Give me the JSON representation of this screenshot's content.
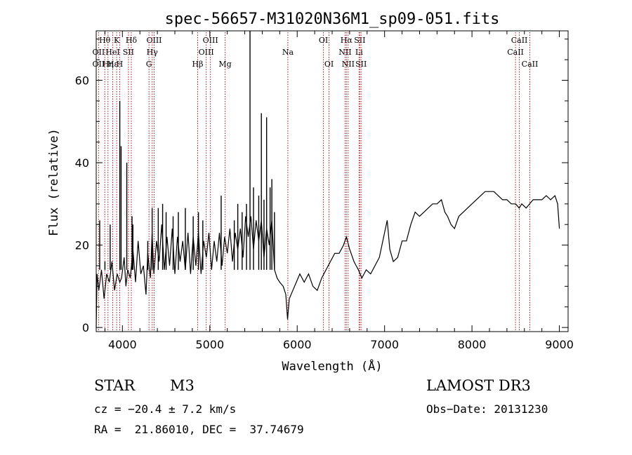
{
  "chart_data": {
    "type": "line",
    "title": "spec-56657-M31020N36M1_sp09-051.fits",
    "xlabel": "Wavelength (Å)",
    "ylabel": "Flux (relative)",
    "xlim": [
      3700,
      9100
    ],
    "ylim": [
      -1,
      72
    ],
    "x_ticks": [
      4000,
      5000,
      6000,
      7000,
      8000,
      9000
    ],
    "y_ticks": [
      0,
      20,
      40,
      60
    ],
    "series": [
      {
        "name": "spectrum",
        "points": [
          [
            3700,
            0
          ],
          [
            3710,
            13
          ],
          [
            3730,
            9
          ],
          [
            3760,
            14
          ],
          [
            3790,
            7
          ],
          [
            3820,
            13
          ],
          [
            3850,
            11
          ],
          [
            3880,
            16
          ],
          [
            3910,
            9
          ],
          [
            3940,
            13
          ],
          [
            3970,
            11
          ],
          [
            3990,
            12
          ],
          [
            4020,
            17
          ],
          [
            4040,
            10
          ],
          [
            4060,
            14
          ],
          [
            4090,
            12
          ],
          [
            4120,
            19
          ],
          [
            4150,
            11
          ],
          [
            4180,
            21
          ],
          [
            4210,
            13
          ],
          [
            4240,
            15
          ],
          [
            4270,
            8
          ],
          [
            4290,
            18
          ],
          [
            4320,
            12
          ],
          [
            4340,
            23
          ],
          [
            4360,
            13
          ],
          [
            4390,
            21
          ],
          [
            4420,
            16
          ],
          [
            4450,
            25
          ],
          [
            4480,
            14
          ],
          [
            4510,
            22
          ],
          [
            4540,
            15
          ],
          [
            4570,
            24
          ],
          [
            4600,
            13
          ],
          [
            4630,
            22
          ],
          [
            4660,
            16
          ],
          [
            4690,
            21
          ],
          [
            4720,
            14
          ],
          [
            4750,
            23
          ],
          [
            4780,
            13
          ],
          [
            4810,
            22
          ],
          [
            4840,
            15
          ],
          [
            4870,
            23
          ],
          [
            4900,
            13
          ],
          [
            4930,
            21
          ],
          [
            4960,
            17
          ],
          [
            4990,
            23
          ],
          [
            5020,
            14
          ],
          [
            5050,
            21
          ],
          [
            5080,
            16
          ],
          [
            5110,
            23
          ],
          [
            5140,
            15
          ],
          [
            5170,
            22
          ],
          [
            5200,
            18
          ],
          [
            5230,
            24
          ],
          [
            5260,
            16
          ],
          [
            5290,
            23
          ],
          [
            5320,
            19
          ],
          [
            5350,
            24
          ],
          [
            5380,
            17
          ],
          [
            5410,
            27
          ],
          [
            5440,
            22
          ],
          [
            5470,
            27
          ],
          [
            5500,
            19
          ],
          [
            5530,
            26
          ],
          [
            5560,
            21
          ],
          [
            5590,
            26
          ],
          [
            5620,
            17
          ],
          [
            5650,
            24
          ],
          [
            5680,
            20
          ],
          [
            5710,
            26
          ],
          [
            5740,
            14
          ],
          [
            5770,
            12
          ],
          [
            5800,
            11
          ],
          [
            5840,
            10
          ],
          [
            5870,
            8
          ],
          [
            5890,
            2
          ],
          [
            5910,
            7
          ],
          [
            5950,
            9
          ],
          [
            5990,
            11
          ],
          [
            6030,
            13
          ],
          [
            6080,
            11
          ],
          [
            6130,
            13
          ],
          [
            6180,
            10
          ],
          [
            6230,
            9
          ],
          [
            6280,
            12
          ],
          [
            6330,
            14
          ],
          [
            6380,
            16
          ],
          [
            6430,
            18
          ],
          [
            6480,
            18
          ],
          [
            6530,
            20
          ],
          [
            6563,
            22
          ],
          [
            6600,
            19
          ],
          [
            6650,
            16
          ],
          [
            6700,
            14
          ],
          [
            6740,
            12
          ],
          [
            6790,
            14
          ],
          [
            6840,
            13
          ],
          [
            6890,
            15
          ],
          [
            6940,
            17
          ],
          [
            6990,
            22
          ],
          [
            7030,
            26
          ],
          [
            7060,
            19
          ],
          [
            7100,
            16
          ],
          [
            7150,
            17
          ],
          [
            7200,
            21
          ],
          [
            7250,
            21
          ],
          [
            7300,
            25
          ],
          [
            7350,
            28
          ],
          [
            7400,
            27
          ],
          [
            7450,
            28
          ],
          [
            7500,
            29
          ],
          [
            7550,
            30
          ],
          [
            7600,
            30
          ],
          [
            7650,
            31
          ],
          [
            7690,
            28
          ],
          [
            7720,
            27
          ],
          [
            7760,
            25
          ],
          [
            7800,
            24
          ],
          [
            7850,
            27
          ],
          [
            7900,
            28
          ],
          [
            7950,
            29
          ],
          [
            8000,
            30
          ],
          [
            8050,
            31
          ],
          [
            8100,
            32
          ],
          [
            8150,
            33
          ],
          [
            8200,
            33
          ],
          [
            8250,
            33
          ],
          [
            8300,
            32
          ],
          [
            8350,
            31
          ],
          [
            8400,
            31
          ],
          [
            8450,
            30
          ],
          [
            8500,
            30
          ],
          [
            8540,
            29
          ],
          [
            8570,
            30
          ],
          [
            8620,
            29
          ],
          [
            8660,
            30
          ],
          [
            8700,
            31
          ],
          [
            8750,
            31
          ],
          [
            8800,
            31
          ],
          [
            8850,
            32
          ],
          [
            8900,
            31
          ],
          [
            8950,
            32
          ],
          [
            8980,
            30
          ],
          [
            9000,
            24
          ]
        ]
      }
    ],
    "spikes": [
      [
        3740,
        26
      ],
      [
        3800,
        16
      ],
      [
        3860,
        25
      ],
      [
        3970,
        55
      ],
      [
        3985,
        44
      ],
      [
        4050,
        40
      ],
      [
        4110,
        27
      ],
      [
        4120,
        25
      ],
      [
        4290,
        21
      ],
      [
        4340,
        29
      ],
      [
        4410,
        29
      ],
      [
        4460,
        30
      ],
      [
        4500,
        28
      ],
      [
        4580,
        27
      ],
      [
        4640,
        28
      ],
      [
        4720,
        29
      ],
      [
        4810,
        27
      ],
      [
        4870,
        28
      ],
      [
        4920,
        26
      ],
      [
        5130,
        32
      ],
      [
        5280,
        26
      ],
      [
        5320,
        30
      ],
      [
        5370,
        28
      ],
      [
        5420,
        30
      ],
      [
        5460,
        72
      ],
      [
        5500,
        34
      ],
      [
        5560,
        32
      ],
      [
        5590,
        52
      ],
      [
        5620,
        31
      ],
      [
        5650,
        51
      ],
      [
        5690,
        34
      ],
      [
        5710,
        36
      ],
      [
        5740,
        28
      ]
    ],
    "line_markers": [
      {
        "label": "Hθ",
        "wave": 3798,
        "row": 1
      },
      {
        "label": "OII",
        "wave": 3727,
        "row": 2
      },
      {
        "label": "OII",
        "wave": 3727,
        "row": 3
      },
      {
        "label": "Hε",
        "wave": 3889,
        "row": 3
      },
      {
        "label": "HeI",
        "wave": 3889,
        "row": 2
      },
      {
        "label": "Hη",
        "wave": 3835,
        "row": 3
      },
      {
        "label": "K",
        "wave": 3934,
        "row": 1
      },
      {
        "label": "H",
        "wave": 3969,
        "row": 3
      },
      {
        "label": "SII",
        "wave": 4069,
        "row": 2
      },
      {
        "label": "Hδ",
        "wave": 4102,
        "row": 1
      },
      {
        "label": "OIII",
        "wave": 4363,
        "row": 1
      },
      {
        "label": "Hγ",
        "wave": 4341,
        "row": 2
      },
      {
        "label": "G",
        "wave": 4304,
        "row": 3
      },
      {
        "label": "Hβ",
        "wave": 4861,
        "row": 3
      },
      {
        "label": "OIII",
        "wave": 5007,
        "row": 1
      },
      {
        "label": "OIII",
        "wave": 4959,
        "row": 2
      },
      {
        "label": "Mg",
        "wave": 5175,
        "row": 3
      },
      {
        "label": "Na",
        "wave": 5893,
        "row": 2
      },
      {
        "label": "OI",
        "wave": 6300,
        "row": 1
      },
      {
        "label": "OI",
        "wave": 6364,
        "row": 3
      },
      {
        "label": "Hα",
        "wave": 6563,
        "row": 1
      },
      {
        "label": "NII",
        "wave": 6548,
        "row": 2
      },
      {
        "label": "NII",
        "wave": 6583,
        "row": 3
      },
      {
        "label": "SII",
        "wave": 6716,
        "row": 1
      },
      {
        "label": "Li",
        "wave": 6708,
        "row": 2
      },
      {
        "label": "SII",
        "wave": 6731,
        "row": 3
      },
      {
        "label": "CaII",
        "wave": 8542,
        "row": 1
      },
      {
        "label": "CaII",
        "wave": 8498,
        "row": 2
      },
      {
        "label": "CaII",
        "wave": 8662,
        "row": 3
      }
    ]
  },
  "info": {
    "object_type": "STAR",
    "subclass": "M3",
    "survey": "LAMOST DR3",
    "cz": "cz = −20.4 ± 7.2 km/s",
    "obs_date": "Obs−Date: 20131230",
    "coords": "RA =  21.86010, DEC =  37.74679"
  }
}
